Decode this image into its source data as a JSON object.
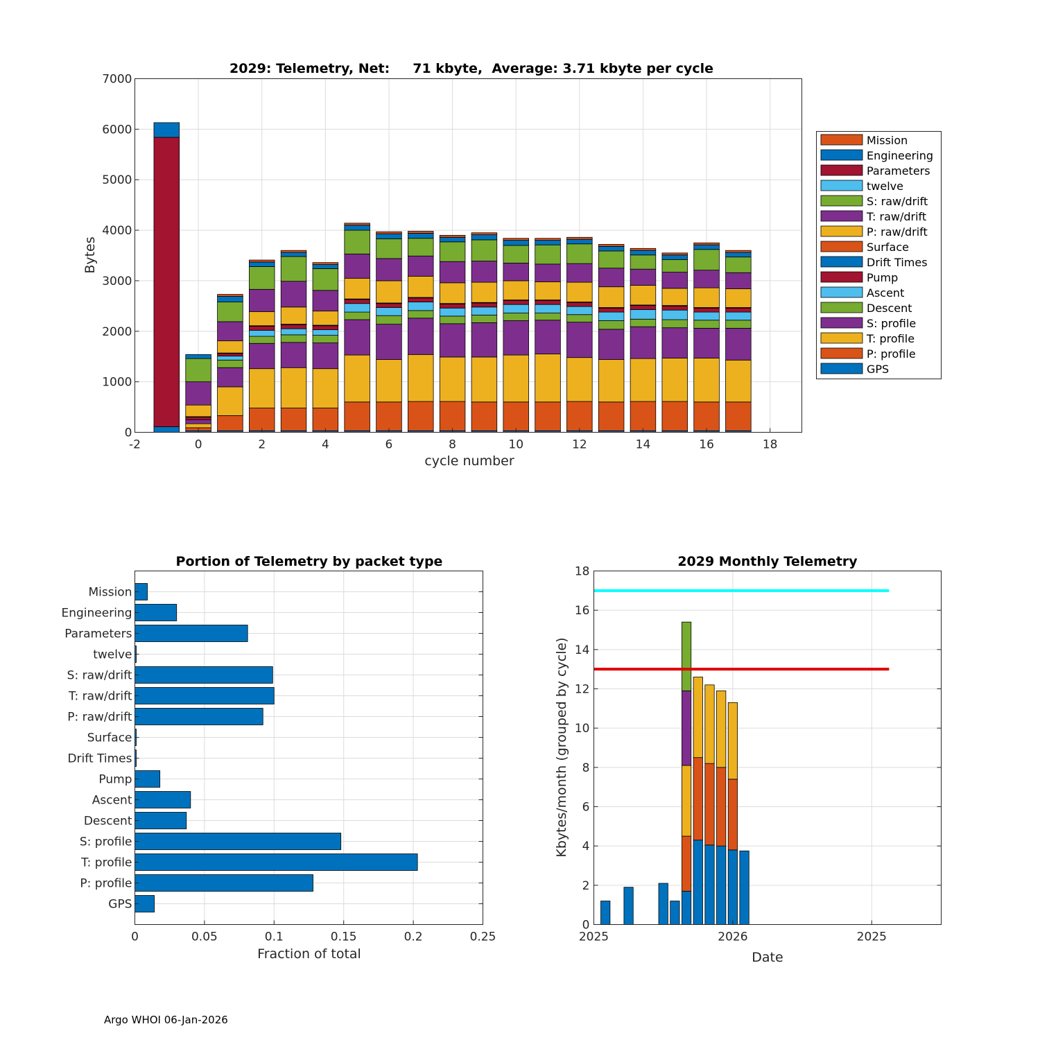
{
  "colors": {
    "orange": "#D95319",
    "blue": "#0072BD",
    "darkred": "#A2142F",
    "cyan": "#4DBEEE",
    "green": "#77AC30",
    "purple": "#7E2F8E",
    "yellow": "#EDB120",
    "limit_cyan": "#00FFFF",
    "limit_red": "#E00000"
  },
  "footer": "Argo WHOI 06-Jan-2026",
  "chart_data": [
    {
      "type": "bar",
      "stacked": true,
      "title": "2029: Telemetry, Net:     71 kbyte,  Average: 3.71 kbyte per cycle",
      "xlabel": "cycle number",
      "ylabel": "Bytes",
      "xlim": [
        -2,
        19
      ],
      "ylim": [
        0,
        7000
      ],
      "xticks": [
        "-2",
        "0",
        "2",
        "4",
        "6",
        "8",
        "10",
        "12",
        "14",
        "16",
        "18"
      ],
      "yticks": [
        "0",
        "1000",
        "2000",
        "3000",
        "4000",
        "5000",
        "6000",
        "7000"
      ],
      "grid": true,
      "legend_position": "outside-right",
      "legend": [
        "Mission",
        "Engineering",
        "Parameters",
        "twelve",
        "S: raw/drift",
        "T: raw/drift",
        "P: raw/drift",
        "Surface",
        "Drift Times",
        "Pump",
        "Ascent",
        "Descent",
        "S: profile",
        "T: profile",
        "P: profile",
        "GPS"
      ],
      "stack_order": [
        "GPS",
        "P: profile",
        "T: profile",
        "S: profile",
        "Descent",
        "Ascent",
        "Pump",
        "Drift Times",
        "Surface",
        "P: raw/drift",
        "T: raw/drift",
        "S: raw/drift",
        "twelve",
        "Parameters",
        "Engineering",
        "Mission"
      ],
      "cycles": [
        -1,
        0,
        1,
        2,
        3,
        4,
        5,
        6,
        7,
        8,
        9,
        10,
        11,
        12,
        13,
        14,
        15,
        16,
        17
      ],
      "series": [
        {
          "name": "GPS",
          "values": [
            110,
            30,
            30,
            30,
            30,
            30,
            30,
            30,
            30,
            30,
            30,
            30,
            30,
            30,
            30,
            30,
            30,
            30,
            30
          ]
        },
        {
          "name": "P: profile",
          "values": [
            0,
            60,
            300,
            450,
            450,
            450,
            570,
            570,
            580,
            580,
            570,
            570,
            570,
            580,
            570,
            580,
            580,
            570,
            570
          ]
        },
        {
          "name": "T: profile",
          "values": [
            0,
            80,
            570,
            780,
            800,
            780,
            930,
            840,
            930,
            880,
            890,
            930,
            950,
            870,
            840,
            850,
            860,
            870,
            830
          ]
        },
        {
          "name": "S: profile",
          "values": [
            0,
            80,
            380,
            500,
            500,
            510,
            700,
            700,
            720,
            660,
            680,
            680,
            670,
            700,
            600,
            630,
            600,
            590,
            630
          ]
        },
        {
          "name": "Descent",
          "values": [
            0,
            0,
            150,
            140,
            150,
            150,
            150,
            170,
            150,
            150,
            150,
            150,
            140,
            150,
            170,
            150,
            160,
            160,
            160
          ]
        },
        {
          "name": "Ascent",
          "values": [
            0,
            0,
            80,
            120,
            120,
            110,
            170,
            160,
            170,
            160,
            160,
            170,
            170,
            160,
            170,
            190,
            190,
            160,
            160
          ]
        },
        {
          "name": "Pump",
          "values": [
            0,
            50,
            50,
            80,
            80,
            80,
            80,
            80,
            80,
            80,
            80,
            80,
            80,
            80,
            80,
            80,
            80,
            80,
            80
          ]
        },
        {
          "name": "Drift Times",
          "values": [
            0,
            5,
            5,
            5,
            5,
            5,
            5,
            5,
            5,
            5,
            5,
            5,
            5,
            5,
            5,
            5,
            5,
            5,
            5
          ]
        },
        {
          "name": "Surface",
          "values": [
            0,
            5,
            5,
            5,
            5,
            5,
            5,
            5,
            5,
            5,
            5,
            5,
            5,
            5,
            5,
            5,
            5,
            5,
            5
          ]
        },
        {
          "name": "P: raw/drift",
          "values": [
            0,
            230,
            240,
            280,
            340,
            280,
            410,
            440,
            420,
            410,
            400,
            380,
            360,
            390,
            410,
            390,
            340,
            390,
            370
          ]
        },
        {
          "name": "T: raw/drift",
          "values": [
            0,
            460,
            380,
            440,
            510,
            410,
            480,
            440,
            400,
            420,
            420,
            350,
            350,
            370,
            370,
            320,
            320,
            350,
            320
          ]
        },
        {
          "name": "S: raw/drift",
          "values": [
            0,
            460,
            390,
            450,
            490,
            430,
            470,
            390,
            350,
            390,
            420,
            350,
            380,
            390,
            340,
            280,
            250,
            410,
            310
          ]
        },
        {
          "name": "twelve",
          "values": [
            0,
            0,
            0,
            0,
            0,
            0,
            0,
            0,
            0,
            0,
            0,
            0,
            0,
            0,
            0,
            0,
            0,
            0,
            0
          ]
        },
        {
          "name": "Parameters",
          "values": [
            5730,
            0,
            0,
            0,
            0,
            0,
            0,
            0,
            0,
            0,
            0,
            0,
            0,
            0,
            0,
            0,
            0,
            0,
            0
          ]
        },
        {
          "name": "Engineering",
          "values": [
            290,
            80,
            110,
            90,
            80,
            80,
            100,
            100,
            100,
            90,
            100,
            100,
            90,
            90,
            90,
            90,
            90,
            90,
            90
          ]
        },
        {
          "name": "Mission",
          "values": [
            0,
            0,
            40,
            40,
            40,
            40,
            40,
            40,
            40,
            40,
            40,
            40,
            40,
            40,
            40,
            40,
            40,
            40,
            40
          ]
        }
      ]
    },
    {
      "type": "bar",
      "orientation": "horizontal",
      "title": "Portion of Telemetry by packet type",
      "xlabel": "Fraction of total",
      "ylabel": "",
      "xlim": [
        0,
        0.25
      ],
      "xticks": [
        "0",
        "0.05",
        "0.1",
        "0.15",
        "0.2",
        "0.25"
      ],
      "grid": true,
      "categories": [
        "GPS",
        "P: profile",
        "T: profile",
        "S: profile",
        "Descent",
        "Ascent",
        "Pump",
        "Drift Times",
        "Surface",
        "P: raw/drift",
        "T: raw/drift",
        "S: raw/drift",
        "twelve",
        "Parameters",
        "Engineering",
        "Mission"
      ],
      "values": [
        0.014,
        0.128,
        0.203,
        0.148,
        0.037,
        0.04,
        0.018,
        0.001,
        0.001,
        0.092,
        0.1,
        0.099,
        0.001,
        0.081,
        0.03,
        0.009
      ]
    },
    {
      "type": "bar",
      "stacked": true,
      "title": "2029 Monthly Telemetry",
      "xlabel": "Date",
      "ylabel": "Kbytes/month (grouped by cycle)",
      "ylim": [
        0,
        18
      ],
      "yticks": [
        "0",
        "2",
        "4",
        "6",
        "8",
        "10",
        "12",
        "14",
        "16",
        "18"
      ],
      "x_tick_labels": [
        "2025",
        "2026",
        "2025"
      ],
      "grid": true,
      "month_index": [
        1,
        3,
        6,
        7,
        8,
        9,
        10,
        11,
        12,
        13
      ],
      "segments": [
        [
          1.2
        ],
        [
          1.9
        ],
        [
          2.1
        ],
        [
          1.2
        ],
        [
          1.7,
          2.8,
          3.6,
          3.8,
          3.5
        ],
        [
          4.3,
          4.2,
          4.1
        ],
        [
          4.05,
          4.15,
          4.0
        ],
        [
          4.0,
          4.0,
          3.9
        ],
        [
          3.8,
          3.6,
          3.9
        ],
        [
          3.75
        ]
      ],
      "segment_colors": [
        "blue",
        "orange",
        "yellow",
        "purple",
        "green"
      ],
      "limit_lines": [
        {
          "value": 17,
          "color": "limit_cyan"
        },
        {
          "value": 13,
          "color": "limit_red"
        }
      ]
    }
  ]
}
